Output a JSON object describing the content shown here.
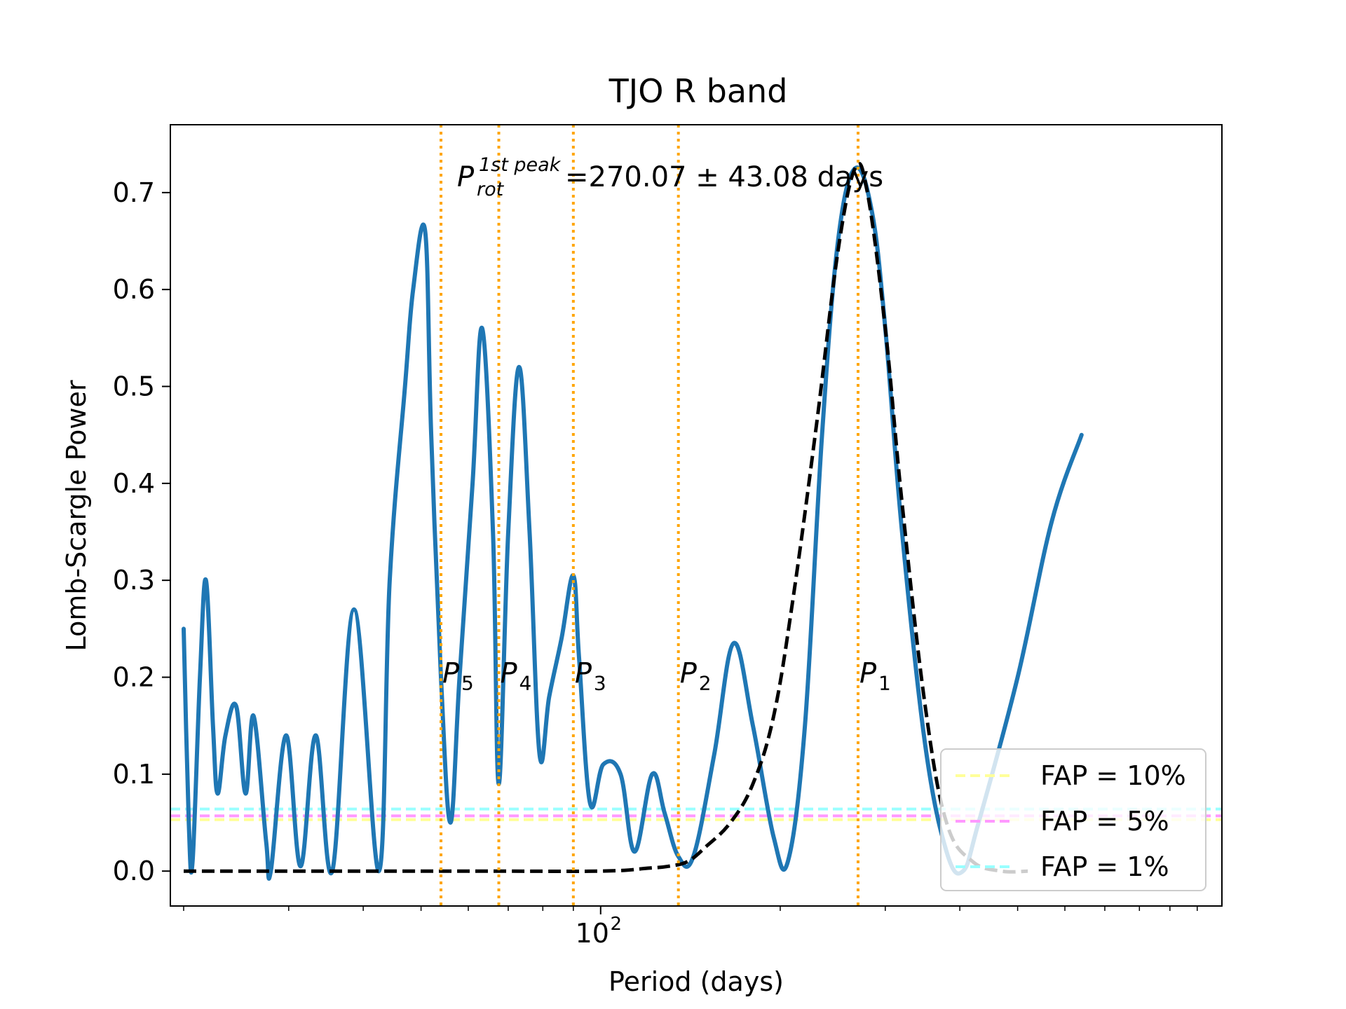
{
  "chart_data": {
    "type": "line",
    "title": "TJO R band",
    "xlabel": "Period (days)",
    "ylabel": "Lomb-Scargle Power",
    "x_scale": "log",
    "xlim": [
      19,
      1100
    ],
    "ylim": [
      -0.036,
      0.77
    ],
    "x_tick_labels": [
      {
        "value": 100,
        "base": "10",
        "exp": "2"
      }
    ],
    "y_ticks": [
      0.0,
      0.1,
      0.2,
      0.3,
      0.4,
      0.5,
      0.6,
      0.7
    ],
    "y_tick_labels": [
      "0.0",
      "0.1",
      "0.2",
      "0.3",
      "0.4",
      "0.5",
      "0.6",
      "0.7"
    ],
    "annotation": {
      "symbol": "P",
      "superscript": "1st peak",
      "subscript": "rot",
      "rest": "=270.07 ± 43.08 days"
    },
    "period_markers": [
      {
        "sym": "P",
        "sub": "1",
        "x": 270.07
      },
      {
        "sym": "P",
        "sub": "2",
        "x": 135
      },
      {
        "sym": "P",
        "sub": "3",
        "x": 90
      },
      {
        "sym": "P",
        "sub": "4",
        "x": 67.5
      },
      {
        "sym": "P",
        "sub": "5",
        "x": 54
      }
    ],
    "marker_color": "#FFA500",
    "fap_levels": [
      {
        "label": "FAP = 10%",
        "y": 0.053,
        "color": "#FFFF99"
      },
      {
        "label": "FAP = 5%",
        "y": 0.057,
        "color": "#FF99FF"
      },
      {
        "label": "FAP = 1%",
        "y": 0.064,
        "color": "#99FFFF"
      }
    ],
    "legend_position": "lower right",
    "series": [
      {
        "type": "periodogram",
        "color": "#1F77B4",
        "points": [
          [
            20,
            0.25
          ],
          [
            20.4,
            0.05
          ],
          [
            20.7,
            0.01
          ],
          [
            21.3,
            0.2
          ],
          [
            21.8,
            0.3
          ],
          [
            22.4,
            0.15
          ],
          [
            22.8,
            0.08
          ],
          [
            23.5,
            0.14
          ],
          [
            24.5,
            0.17
          ],
          [
            25.4,
            0.08
          ],
          [
            26.2,
            0.16
          ],
          [
            27.5,
            0.03
          ],
          [
            28,
            0.0
          ],
          [
            29.7,
            0.14
          ],
          [
            31.4,
            0.005
          ],
          [
            33.3,
            0.14
          ],
          [
            35.5,
            0.0
          ],
          [
            38.6,
            0.27
          ],
          [
            42.5,
            0.0
          ],
          [
            44.3,
            0.3
          ],
          [
            47,
            0.5
          ],
          [
            48.5,
            0.6
          ],
          [
            50.8,
            0.66
          ],
          [
            52,
            0.45
          ],
          [
            54,
            0.2
          ],
          [
            56,
            0.05
          ],
          [
            58,
            0.2
          ],
          [
            61,
            0.4
          ],
          [
            63.3,
            0.56
          ],
          [
            66,
            0.35
          ],
          [
            67.5,
            0.09
          ],
          [
            70,
            0.35
          ],
          [
            73,
            0.52
          ],
          [
            76,
            0.35
          ],
          [
            79,
            0.12
          ],
          [
            82,
            0.18
          ],
          [
            86,
            0.24
          ],
          [
            90,
            0.305
          ],
          [
            92,
            0.22
          ],
          [
            96,
            0.07
          ],
          [
            101,
            0.11
          ],
          [
            108,
            0.1
          ],
          [
            114,
            0.02
          ],
          [
            122,
            0.1
          ],
          [
            128,
            0.06
          ],
          [
            135,
            0.015
          ],
          [
            143,
            0.015
          ],
          [
            155,
            0.12
          ],
          [
            167,
            0.235
          ],
          [
            180,
            0.15
          ],
          [
            195,
            0.035
          ],
          [
            206,
            0.01
          ],
          [
            220,
            0.15
          ],
          [
            235,
            0.45
          ],
          [
            250,
            0.65
          ],
          [
            267,
            0.725
          ],
          [
            285,
            0.68
          ],
          [
            300,
            0.56
          ],
          [
            320,
            0.35
          ],
          [
            350,
            0.13
          ],
          [
            380,
            0.02
          ],
          [
            405,
            0.0
          ],
          [
            430,
            0.05
          ],
          [
            500,
            0.2
          ],
          [
            570,
            0.36
          ],
          [
            640,
            0.45
          ]
        ]
      },
      {
        "type": "fit",
        "color": "#000000",
        "points": [
          [
            20,
            0.0
          ],
          [
            60,
            0.0
          ],
          [
            100,
            0.0
          ],
          [
            120,
            0.003
          ],
          [
            130,
            0.005
          ],
          [
            140,
            0.01
          ],
          [
            150,
            0.025
          ],
          [
            165,
            0.05
          ],
          [
            180,
            0.09
          ],
          [
            195,
            0.16
          ],
          [
            210,
            0.28
          ],
          [
            230,
            0.46
          ],
          [
            250,
            0.64
          ],
          [
            267,
            0.725
          ],
          [
            280,
            0.7
          ],
          [
            300,
            0.56
          ],
          [
            320,
            0.38
          ],
          [
            350,
            0.17
          ],
          [
            380,
            0.05
          ],
          [
            420,
            0.01
          ],
          [
            470,
            0.0
          ],
          [
            520,
            0.0
          ]
        ]
      }
    ]
  }
}
